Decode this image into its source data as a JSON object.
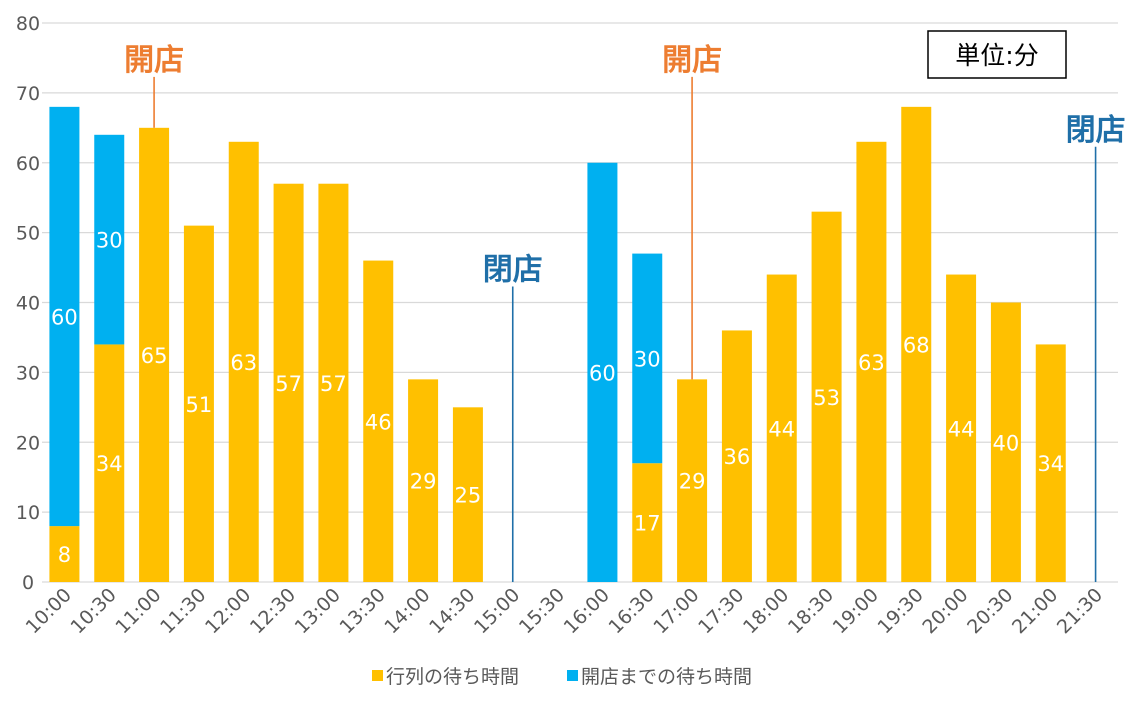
{
  "chart_data": {
    "type": "bar",
    "stacked": true,
    "categories": [
      "10:00",
      "10:30",
      "11:00",
      "11:30",
      "12:00",
      "12:30",
      "13:00",
      "13:30",
      "14:00",
      "14:30",
      "15:00",
      "15:30",
      "16:00",
      "16:30",
      "17:00",
      "17:30",
      "18:00",
      "18:30",
      "19:00",
      "19:30",
      "20:00",
      "20:30",
      "21:00",
      "21:30"
    ],
    "series": [
      {
        "name": "行列の待ち時間",
        "color": "#FFC000",
        "values": [
          8,
          34,
          65,
          51,
          63,
          57,
          57,
          46,
          29,
          25,
          0,
          0,
          0,
          17,
          29,
          36,
          44,
          53,
          63,
          68,
          44,
          40,
          34,
          0
        ]
      },
      {
        "name": "開店までの待ち時間",
        "color": "#00B0F0",
        "values": [
          60,
          30,
          0,
          0,
          0,
          0,
          0,
          0,
          0,
          0,
          0,
          0,
          60,
          30,
          0,
          0,
          0,
          0,
          0,
          0,
          0,
          0,
          0,
          0
        ]
      }
    ],
    "ylim": [
      0,
      80
    ],
    "yticks": [
      0,
      10,
      20,
      30,
      40,
      50,
      60,
      70,
      80
    ],
    "grid": true,
    "legend": "bottom",
    "unit_box": "単位:分",
    "annotations": [
      {
        "text": "開店",
        "category": "11:00",
        "y_top": 72,
        "y_bottom": 65,
        "color": "#ED7D31"
      },
      {
        "text": "閉店",
        "category": "15:00",
        "y_top": 42,
        "y_bottom": 0,
        "color": "#1F6FA8"
      },
      {
        "text": "開店",
        "category": "17:00",
        "y_top": 72,
        "y_bottom": 29,
        "color": "#ED7D31"
      },
      {
        "text": "閉店",
        "category": "21:30",
        "y_top": 62,
        "y_bottom": 0,
        "color": "#1F6FA8"
      }
    ]
  }
}
